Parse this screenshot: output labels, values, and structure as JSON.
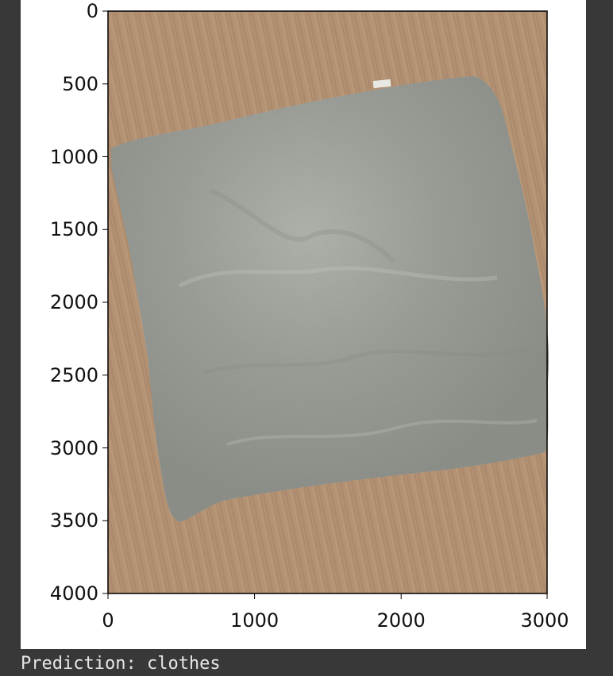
{
  "output": {
    "prediction_label": "Prediction:",
    "prediction_value": "clothes"
  },
  "plot": {
    "x_ticks": [
      "0",
      "1000",
      "2000",
      "3000"
    ],
    "y_ticks": [
      "0",
      "500",
      "1000",
      "1500",
      "2000",
      "2500",
      "3000",
      "3500",
      "4000"
    ],
    "image_description_icon": "photo-of-crumpled-gray-towel-on-wooden-table"
  },
  "colors": {
    "background": "#383838",
    "figure": "#ffffff",
    "wood": "#b29070",
    "towel": "#a2a59f",
    "output_text": "#e6e6e6"
  }
}
